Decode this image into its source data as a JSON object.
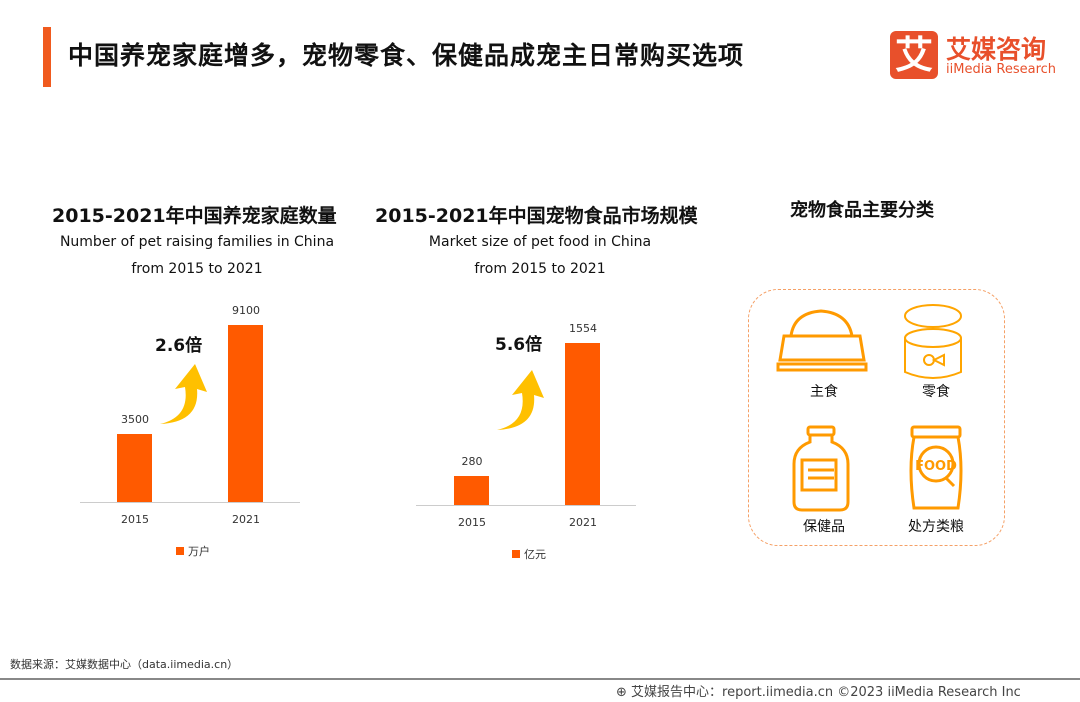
{
  "header": {
    "title": "中国养宠家庭增多，宠物零食、保健品成宠主日常购买选项",
    "logo_mark": "艾",
    "logo_cn": "艾媒咨询",
    "logo_en": "iiMedia Research"
  },
  "chart_data": [
    {
      "type": "bar",
      "title": "2015-2021年中国养宠家庭数量",
      "subtitle": [
        "Number of pet raising families in China",
        "from 2015 to 2021"
      ],
      "categories": [
        "2015",
        "2021"
      ],
      "values": [
        3500,
        9100
      ],
      "legend": "万户",
      "annotation": "2.6倍",
      "ylim": [
        0,
        9100
      ],
      "color": "#ff5a00"
    },
    {
      "type": "bar",
      "title": "2015-2021年中国宠物食品市场规模",
      "subtitle": [
        "Market size of pet food in China",
        "from 2015 to 2021"
      ],
      "categories": [
        "2015",
        "2021"
      ],
      "values": [
        280,
        1554
      ],
      "legend": "亿元",
      "annotation": "5.6倍",
      "ylim": [
        0,
        1554
      ],
      "color": "#ff5a00"
    }
  ],
  "categories": {
    "title": "宠物食品主要分类",
    "items": [
      "主食",
      "零食",
      "保健品",
      "处方类粮"
    ],
    "food_label": "FOOD"
  },
  "footer": {
    "source": "数据来源：艾媒数据中心（data.iimedia.cn）",
    "credit": "艾媒报告中心：report.iimedia.cn   ©2023  iiMedia Research Inc"
  }
}
